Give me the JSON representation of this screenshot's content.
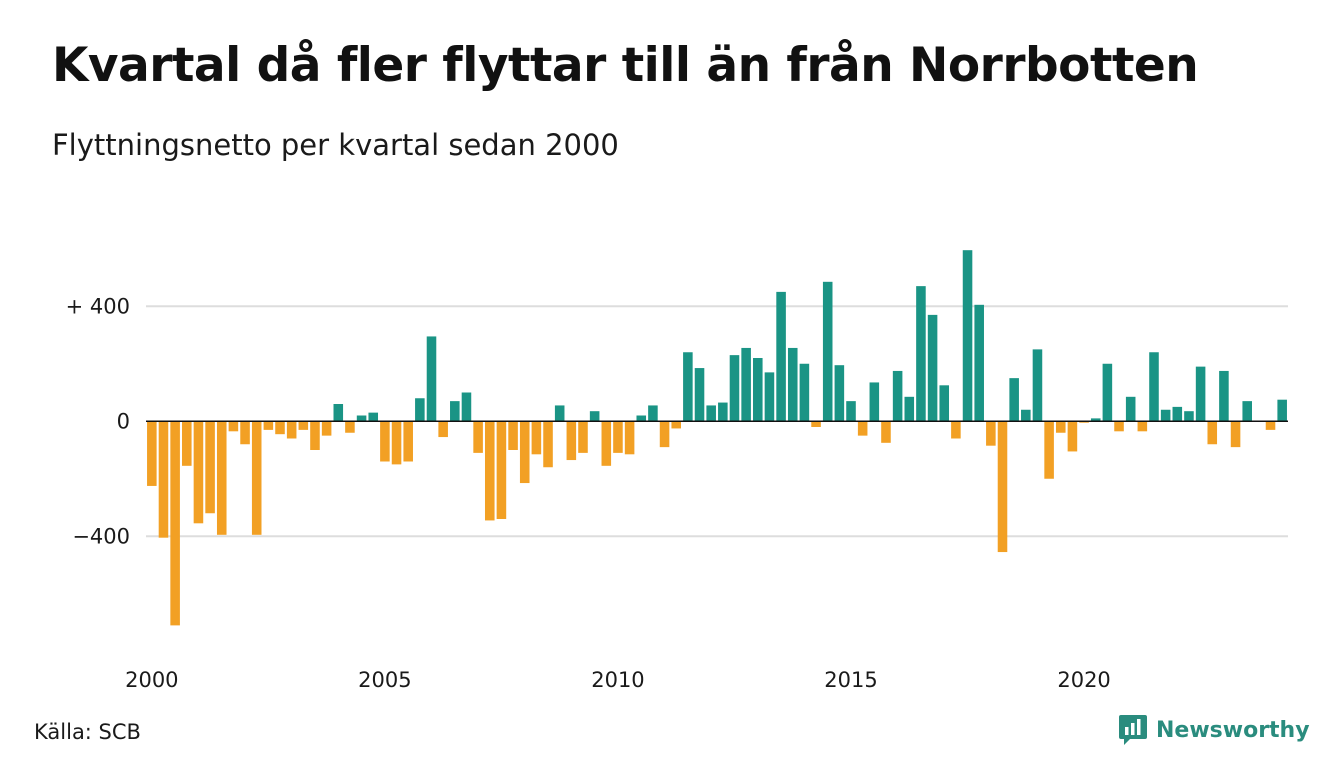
{
  "title": "Kvartal då fler flyttar till än från Norrbotten",
  "subtitle": "Flyttningsnetto per kvartal sedan 2000",
  "source": "Källa: SCB",
  "brand": "Newsworthy",
  "colors": {
    "positive": "#1a9485",
    "negative": "#f2a024",
    "grid": "#dddddd",
    "zero_line": "#111111",
    "brand": "#2a8c7e"
  },
  "chart_data": {
    "type": "bar",
    "title": "Kvartal då fler flyttar till än från Norrbotten",
    "subtitle": "Flyttningsnetto per kvartal sedan 2000",
    "xlabel": "",
    "ylabel": "",
    "grid": true,
    "ylim": [
      -740,
      620
    ],
    "yticks": [
      {
        "value": 400,
        "label": "+ 400"
      },
      {
        "value": 0,
        "label": "0"
      },
      {
        "value": -400,
        "label": "−400"
      }
    ],
    "xticks": [
      {
        "index": 0,
        "label": "2000"
      },
      {
        "index": 20,
        "label": "2005"
      },
      {
        "index": 40,
        "label": "2010"
      },
      {
        "index": 60,
        "label": "2015"
      },
      {
        "index": 80,
        "label": "2020"
      }
    ],
    "values": [
      -225,
      -405,
      -710,
      -155,
      -355,
      -320,
      -395,
      -35,
      -80,
      -395,
      -30,
      -45,
      -60,
      -30,
      -100,
      -50,
      60,
      -40,
      20,
      30,
      -140,
      -150,
      -140,
      80,
      295,
      -55,
      70,
      100,
      -110,
      -345,
      -340,
      -100,
      -215,
      -115,
      -160,
      55,
      -135,
      -110,
      35,
      -155,
      -110,
      -115,
      20,
      55,
      -90,
      -25,
      240,
      185,
      55,
      65,
      230,
      255,
      220,
      170,
      450,
      255,
      200,
      -20,
      485,
      195,
      70,
      -50,
      135,
      -75,
      175,
      85,
      470,
      370,
      125,
      -60,
      595,
      405,
      -85,
      -455,
      150,
      40,
      250,
      -200,
      -40,
      -105,
      -5,
      10,
      200,
      -35,
      85,
      -35,
      240,
      40,
      50,
      35,
      190,
      -80,
      175,
      -90,
      70,
      0,
      -30,
      75
    ]
  }
}
